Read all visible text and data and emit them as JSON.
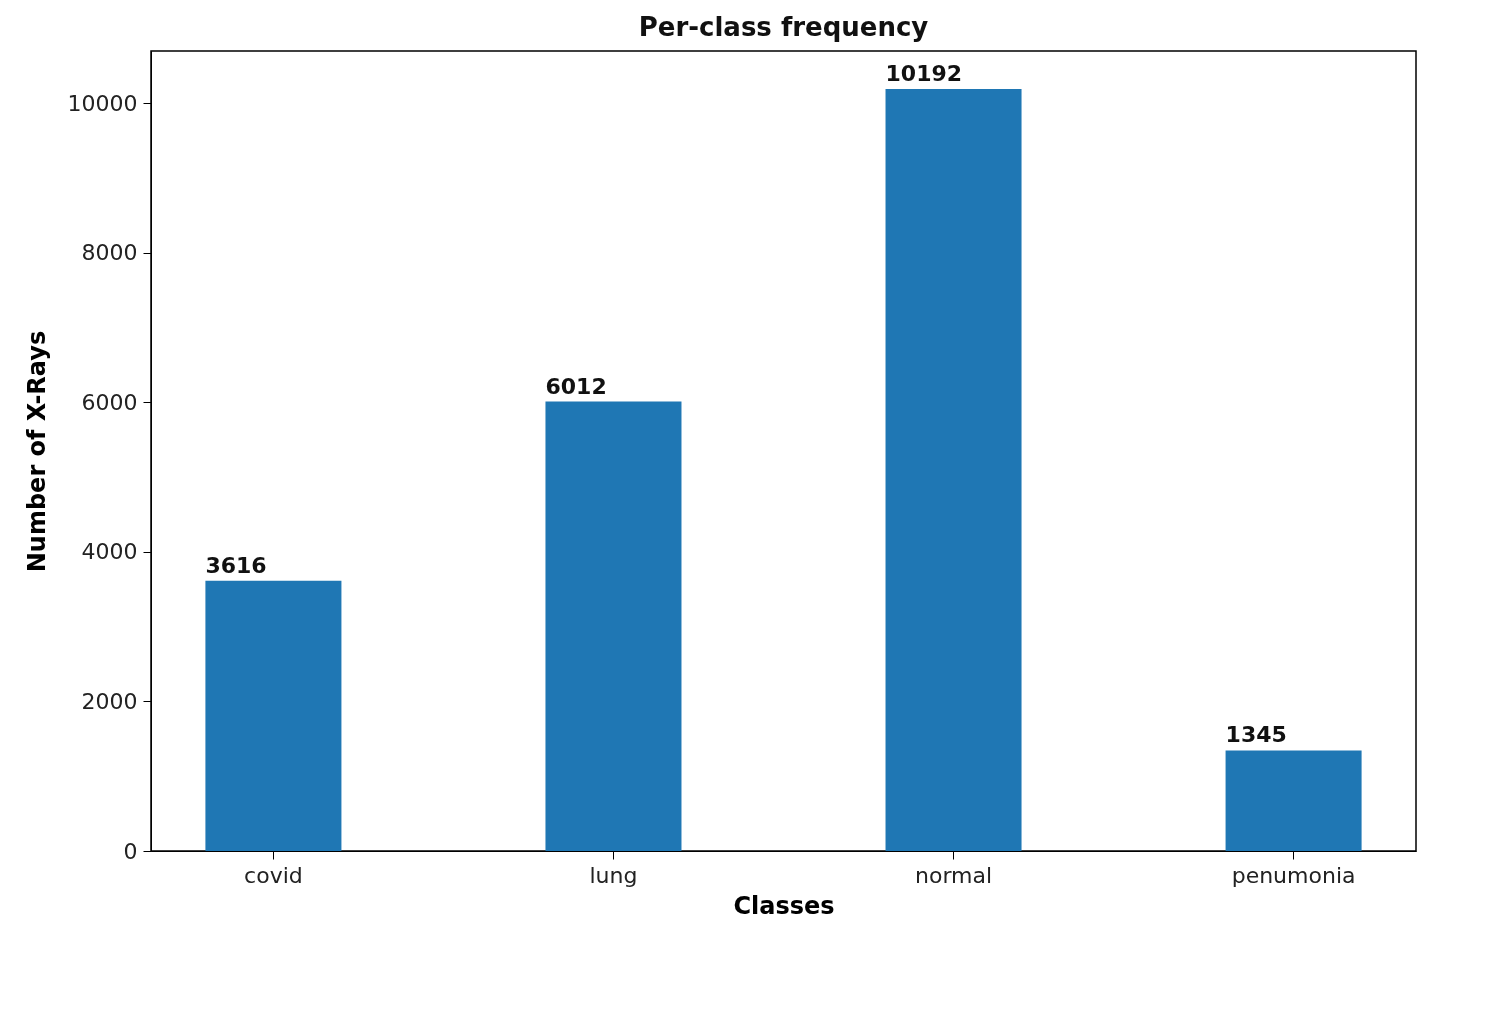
{
  "chart_data": {
    "type": "bar",
    "title": "Per-class frequency",
    "xlabel": "Classes",
    "ylabel": "Number of X-Rays",
    "categories": [
      "covid",
      "lung",
      "normal",
      "penumonia"
    ],
    "values": [
      3616,
      6012,
      10192,
      1345
    ],
    "color": "#1f77b4",
    "ylim": [
      0,
      10700
    ],
    "yticks": [
      0,
      2000,
      4000,
      6000,
      8000,
      10000
    ],
    "data_labels": true
  }
}
